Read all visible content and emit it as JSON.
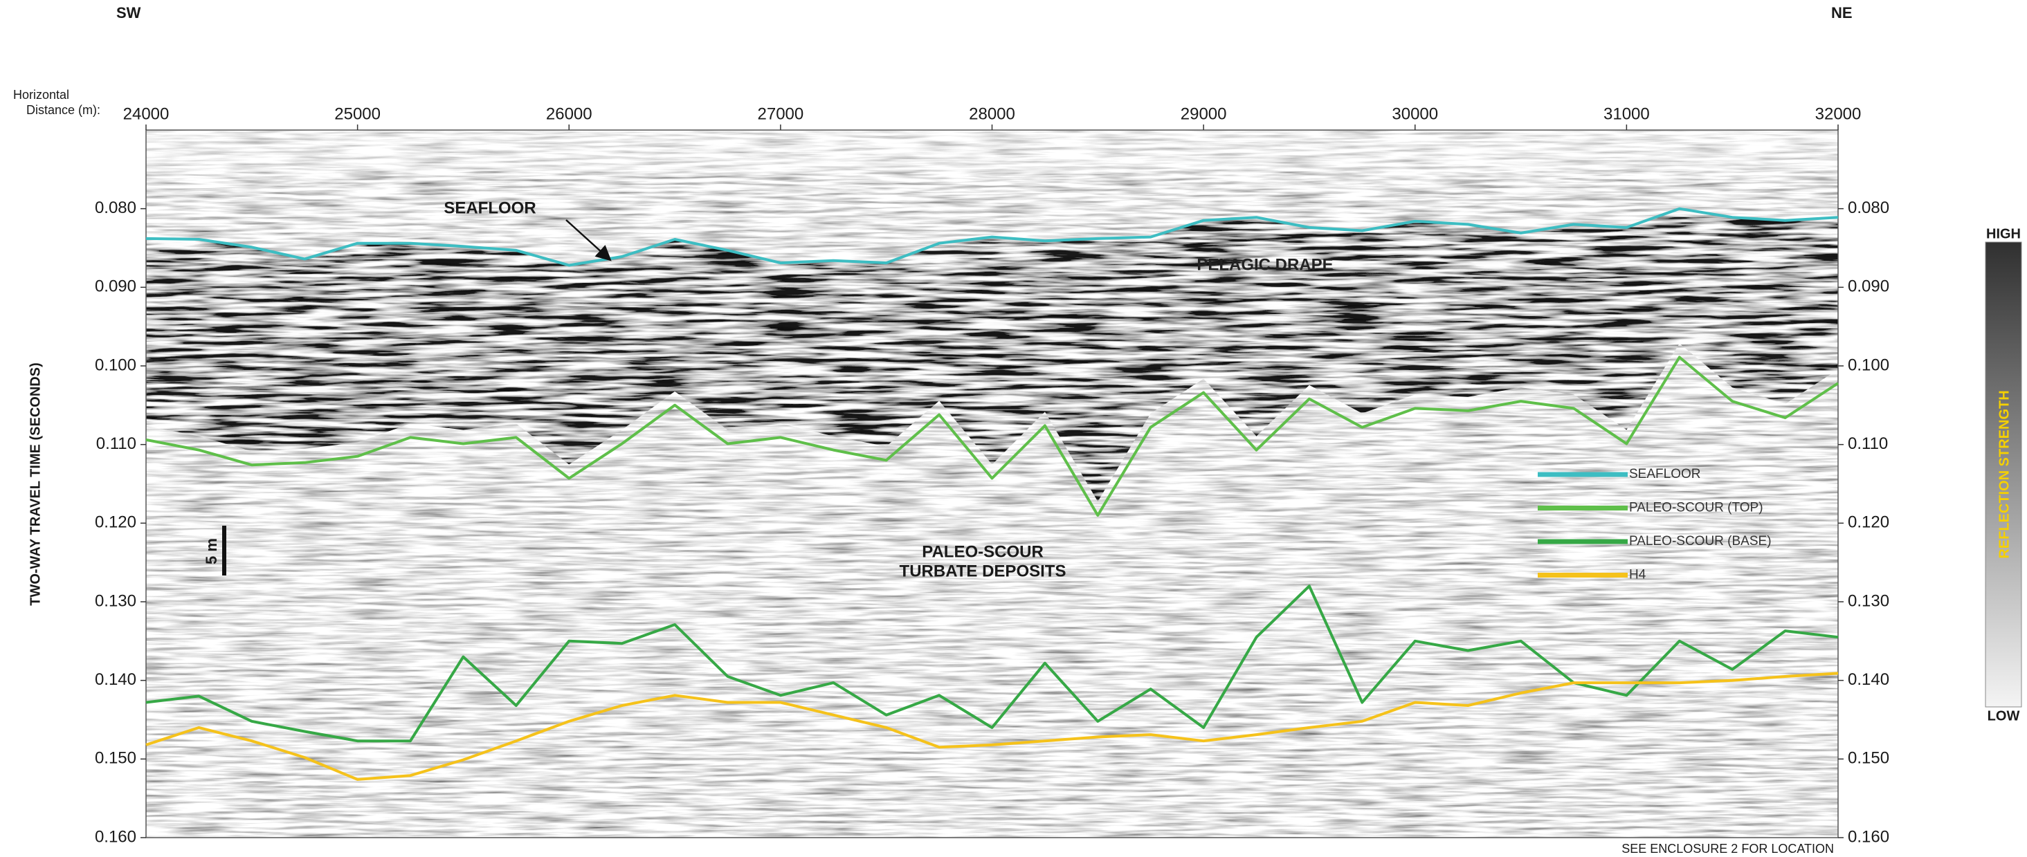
{
  "chart_data": {
    "type": "line",
    "left_label": "SW",
    "right_label": "NE",
    "xlabel_lines": [
      "Horizontal",
      "Distance (m):"
    ],
    "ylabel": "TWO-WAY TRAVEL TIME (SECONDS)",
    "x": [
      24000,
      24250,
      24500,
      24750,
      25000,
      25250,
      25500,
      25750,
      26000,
      26250,
      26500,
      26750,
      27000,
      27250,
      27500,
      27750,
      28000,
      28250,
      28500,
      28750,
      29000,
      29250,
      29500,
      29750,
      30000,
      30250,
      30500,
      30750,
      31000,
      31250,
      31500,
      31750,
      32000
    ],
    "xlim": [
      24000,
      32000
    ],
    "xticks": [
      24000,
      25000,
      26000,
      27000,
      28000,
      29000,
      30000,
      31000,
      32000
    ],
    "ylim": [
      0.16,
      0.07
    ],
    "yticks": [
      {
        "value": 0.08,
        "label": "0.080"
      },
      {
        "value": 0.09,
        "label": "0.090"
      },
      {
        "value": 0.1,
        "label": "0.100"
      },
      {
        "value": 0.11,
        "label": "0.110"
      },
      {
        "value": 0.12,
        "label": "0.120"
      },
      {
        "value": 0.13,
        "label": "0.130"
      },
      {
        "value": 0.14,
        "label": "0.140"
      },
      {
        "value": 0.15,
        "label": "0.150"
      },
      {
        "value": 0.16,
        "label": "0.160"
      }
    ],
    "y2lim": [
      0.16,
      0.07
    ],
    "y2ticks": [
      {
        "value": 0.08,
        "label": "0.080"
      },
      {
        "value": 0.09,
        "label": "0.090"
      },
      {
        "value": 0.1,
        "label": "0.100"
      },
      {
        "value": 0.11,
        "label": "0.110"
      },
      {
        "value": 0.12,
        "label": "0.120"
      },
      {
        "value": 0.13,
        "label": "0.130"
      },
      {
        "value": 0.14,
        "label": "0.140"
      },
      {
        "value": 0.15,
        "label": "0.150"
      },
      {
        "value": 0.16,
        "label": "0.160"
      }
    ],
    "series": [
      {
        "name": "SEAFLOOR",
        "color": "#3dbdc2",
        "values": [
          0.0838,
          0.0839,
          0.0849,
          0.0864,
          0.0844,
          0.0844,
          0.0848,
          0.0853,
          0.0872,
          0.0861,
          0.0839,
          0.0853,
          0.0869,
          0.0866,
          0.0869,
          0.0844,
          0.0836,
          0.0841,
          0.0838,
          0.0836,
          0.0815,
          0.0811,
          0.0824,
          0.0828,
          0.0816,
          0.082,
          0.0831,
          0.082,
          0.0824,
          0.08,
          0.0811,
          0.0815,
          0.0811
        ]
      },
      {
        "name": "PALEO-SCOUR (TOP)",
        "color": "#5fbf4a",
        "values": [
          0.1094,
          0.1107,
          0.1126,
          0.1123,
          0.1115,
          0.1091,
          0.1099,
          0.1091,
          0.1143,
          0.1099,
          0.105,
          0.1099,
          0.1091,
          0.1107,
          0.112,
          0.1062,
          0.1143,
          0.1076,
          0.119,
          0.1078,
          0.1034,
          0.1107,
          0.1042,
          0.1078,
          0.1054,
          0.1057,
          0.1045,
          0.1054,
          0.1099,
          0.0989,
          0.1045,
          0.1066,
          0.1022
        ]
      },
      {
        "name": "PALEO-SCOUR (BASE)",
        "color": "#36a846",
        "values": [
          0.1428,
          0.142,
          0.1452,
          0.1465,
          0.1477,
          0.1477,
          0.137,
          0.1432,
          0.135,
          0.1353,
          0.1329,
          0.1395,
          0.1419,
          0.1403,
          0.1444,
          0.1419,
          0.146,
          0.1378,
          0.1452,
          0.1411,
          0.146,
          0.1345,
          0.128,
          0.1428,
          0.135,
          0.1362,
          0.135,
          0.1403,
          0.1419,
          0.135,
          0.1386,
          0.1337,
          0.1345
        ]
      },
      {
        "name": "H4",
        "color": "#f5c21b",
        "values": [
          0.1482,
          0.146,
          0.1477,
          0.1498,
          0.1526,
          0.1521,
          0.1501,
          0.1477,
          0.1452,
          0.1432,
          0.1419,
          0.1428,
          0.1428,
          0.1444,
          0.146,
          0.1485,
          0.1482,
          0.1477,
          0.1472,
          0.1469,
          0.1477,
          0.1469,
          0.146,
          0.1452,
          0.1428,
          0.1432,
          0.1416,
          0.1403,
          0.1403,
          0.1403,
          0.14,
          0.1395,
          0.1391
        ]
      }
    ],
    "annotations": [
      "SEAFLOOR",
      "PELAGIC DRAPE",
      "PALEO-SCOUR",
      "TURBATE DEPOSITS"
    ],
    "scale_bar": "5 m",
    "colorbar": {
      "high": "HIGH",
      "low": "LOW",
      "label": "REFLECTION STRENGTH"
    },
    "note": "SEE ENCLOSURE 2 FOR LOCATION"
  }
}
